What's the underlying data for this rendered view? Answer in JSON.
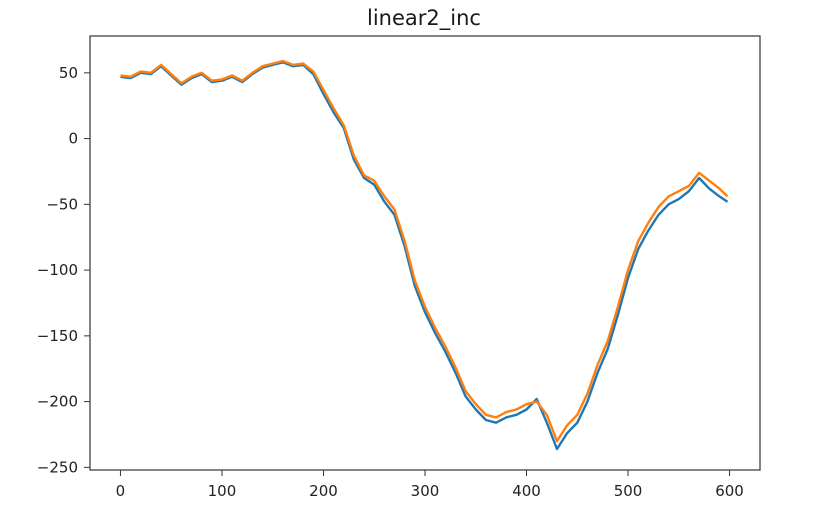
{
  "chart_data": {
    "type": "line",
    "title": "linear2_inc",
    "xlabel": "",
    "ylabel": "",
    "xlim": [
      -30,
      630
    ],
    "ylim": [
      -252,
      78
    ],
    "grid": false,
    "x_ticks": [
      0,
      100,
      200,
      300,
      400,
      500,
      600
    ],
    "y_ticks": [
      50,
      0,
      -50,
      -100,
      -150,
      -200,
      -250
    ],
    "colors": [
      "#1f77b4",
      "#ff7f0e"
    ],
    "x": [
      0,
      10,
      20,
      30,
      40,
      50,
      60,
      70,
      80,
      90,
      100,
      110,
      120,
      130,
      140,
      150,
      160,
      170,
      180,
      190,
      200,
      210,
      220,
      230,
      240,
      250,
      260,
      270,
      280,
      290,
      300,
      310,
      320,
      330,
      340,
      350,
      360,
      370,
      380,
      390,
      400,
      410,
      420,
      430,
      440,
      450,
      460,
      470,
      480,
      490,
      500,
      510,
      520,
      530,
      540,
      550,
      560,
      570,
      580,
      590,
      598
    ],
    "series": [
      {
        "values": [
          47,
          46,
          50,
          49,
          55,
          48,
          41,
          46,
          49,
          43,
          44,
          47,
          43,
          49,
          54,
          56,
          58,
          55,
          56,
          49,
          34,
          20,
          8,
          -16,
          -30,
          -35,
          -48,
          -58,
          -82,
          -112,
          -132,
          -148,
          -162,
          -178,
          -196,
          -206,
          -214,
          -216,
          -212,
          -210,
          -206,
          -198,
          -216,
          -236,
          -224,
          -216,
          -200,
          -178,
          -160,
          -134,
          -106,
          -84,
          -70,
          -58,
          -50,
          -46,
          -40,
          -30,
          -38,
          -44,
          -48
        ]
      },
      {
        "values": [
          48,
          47,
          51,
          50,
          56,
          49,
          42,
          47,
          50,
          44,
          45,
          48,
          44,
          50,
          55,
          57,
          59,
          56,
          57,
          51,
          37,
          23,
          10,
          -13,
          -28,
          -32,
          -44,
          -54,
          -78,
          -108,
          -128,
          -144,
          -158,
          -174,
          -192,
          -202,
          -210,
          -212,
          -208,
          -206,
          -202,
          -200,
          -210,
          -230,
          -218,
          -210,
          -194,
          -172,
          -154,
          -128,
          -100,
          -78,
          -64,
          -52,
          -44,
          -40,
          -36,
          -26,
          -32,
          -38,
          -44
        ]
      }
    ]
  }
}
